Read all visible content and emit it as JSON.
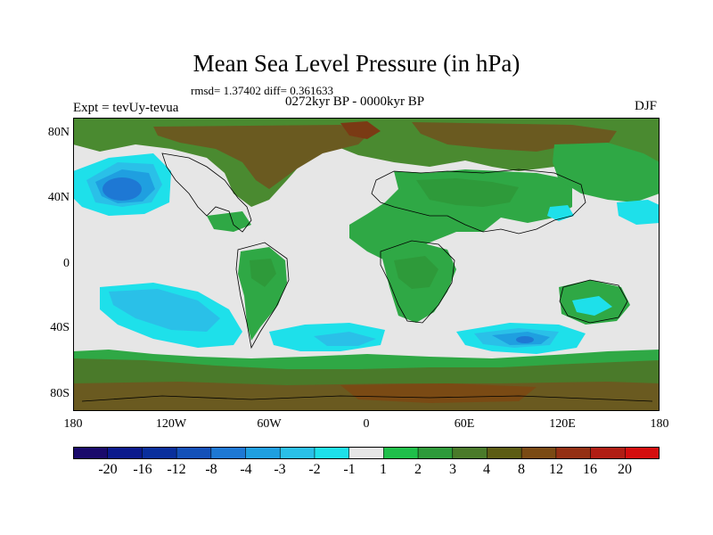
{
  "title": "Mean Sea Level Pressure (in hPa)",
  "stats": "rmsd= 1.37402 diff= 0.361633",
  "period": "0272kyr BP - 0000kyr BP",
  "experiment": "Expt = tevUy-tevua",
  "season": "DJF",
  "lat_ticks": [
    "80N",
    "40N",
    "0",
    "40S",
    "80S"
  ],
  "lon_ticks": [
    "180",
    "120W",
    "60W",
    "0",
    "60E",
    "120E",
    "180"
  ],
  "colorbar": {
    "labels": [
      "-20",
      "-16",
      "-12",
      "-8",
      "-4",
      "-3",
      "-2",
      "-1",
      "1",
      "2",
      "3",
      "4",
      "8",
      "12",
      "16",
      "20"
    ],
    "colors": [
      "#1a0a6b",
      "#0b1a8c",
      "#0a2f9c",
      "#1450b8",
      "#1e78d4",
      "#1f9fe0",
      "#2ac0e8",
      "#1ee0ea",
      "#e6e6e6",
      "#1fbf4a",
      "#2e9a3a",
      "#4a7a2a",
      "#5c5c14",
      "#7a4a14",
      "#943014",
      "#b01e14",
      "#d40e0e"
    ]
  },
  "map": {
    "background_color": "#e6e6e6",
    "land_color": "#ffffff"
  }
}
